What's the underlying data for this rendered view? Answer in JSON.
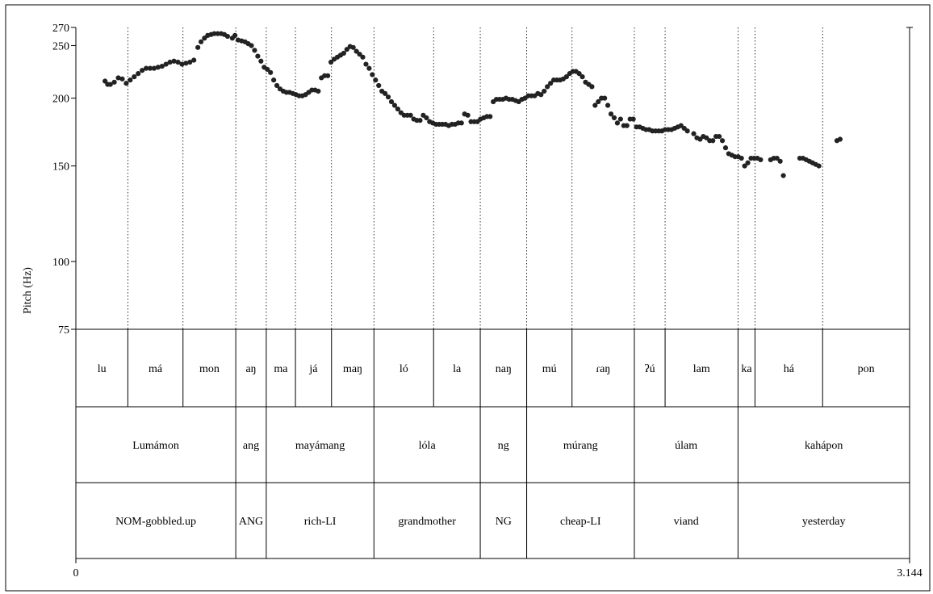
{
  "chart_data": {
    "type": "scatter",
    "title": "",
    "xlabel": "",
    "ylabel": "Pitch (Hz)",
    "xlim": [
      0,
      3.144
    ],
    "ylim": [
      75,
      270
    ],
    "y_ticks": [
      "270",
      "250",
      "200",
      "150",
      "100",
      "75"
    ],
    "x_tick_labels": [
      "0",
      "3.144"
    ],
    "grid": "dotted vertical lines at syllable boundaries",
    "boundaries": [
      0.196,
      0.404,
      0.603,
      0.718,
      0.828,
      0.964,
      1.124,
      1.349,
      1.525,
      1.7,
      1.871,
      2.106,
      2.222,
      2.497,
      2.561,
      2.816
    ],
    "tiers": [
      {
        "name": "syllables",
        "intervals": [
          {
            "label": "lu",
            "start": 0.0,
            "end": 0.196
          },
          {
            "label": "má",
            "start": 0.196,
            "end": 0.404
          },
          {
            "label": "mon",
            "start": 0.404,
            "end": 0.603
          },
          {
            "label": "aŋ",
            "start": 0.603,
            "end": 0.718
          },
          {
            "label": "ma",
            "start": 0.718,
            "end": 0.828
          },
          {
            "label": "já",
            "start": 0.828,
            "end": 0.964
          },
          {
            "label": "maŋ",
            "start": 0.964,
            "end": 1.124
          },
          {
            "label": "ló",
            "start": 1.124,
            "end": 1.349
          },
          {
            "label": "la",
            "start": 1.349,
            "end": 1.525
          },
          {
            "label": "naŋ",
            "start": 1.525,
            "end": 1.7
          },
          {
            "label": "mú",
            "start": 1.7,
            "end": 1.871
          },
          {
            "label": "ɾaŋ",
            "start": 1.871,
            "end": 2.106
          },
          {
            "label": "ʔú",
            "start": 2.106,
            "end": 2.222
          },
          {
            "label": "lam",
            "start": 2.222,
            "end": 2.497
          },
          {
            "label": "ka",
            "start": 2.497,
            "end": 2.561
          },
          {
            "label": "há",
            "start": 2.561,
            "end": 2.816
          },
          {
            "label": "pon",
            "start": 2.816,
            "end": 3.144
          }
        ]
      },
      {
        "name": "words",
        "intervals": [
          {
            "label": "Lumámon",
            "start": 0.0,
            "end": 0.603
          },
          {
            "label": "ang",
            "start": 0.603,
            "end": 0.718
          },
          {
            "label": "mayámang",
            "start": 0.718,
            "end": 1.124
          },
          {
            "label": "lóla",
            "start": 1.124,
            "end": 1.525
          },
          {
            "label": "ng",
            "start": 1.525,
            "end": 1.7
          },
          {
            "label": "múrang",
            "start": 1.7,
            "end": 2.106
          },
          {
            "label": "úlam",
            "start": 2.106,
            "end": 2.497
          },
          {
            "label": "kahápon",
            "start": 2.497,
            "end": 3.144
          }
        ]
      },
      {
        "name": "gloss",
        "intervals": [
          {
            "label": "NOM-gobbled.up",
            "start": 0.0,
            "end": 0.603
          },
          {
            "label": "ANG",
            "start": 0.603,
            "end": 0.718
          },
          {
            "label": "rich-LI",
            "start": 0.718,
            "end": 1.124
          },
          {
            "label": "grandmother",
            "start": 1.124,
            "end": 1.525
          },
          {
            "label": "NG",
            "start": 1.525,
            "end": 1.7
          },
          {
            "label": "cheap-LI",
            "start": 1.7,
            "end": 2.106
          },
          {
            "label": "viand",
            "start": 2.106,
            "end": 2.497
          },
          {
            "label": "yesterday",
            "start": 2.497,
            "end": 3.144
          }
        ]
      }
    ],
    "series": [
      {
        "points": [
          [
            0.11,
            215
          ],
          [
            0.12,
            212
          ],
          [
            0.13,
            212
          ],
          [
            0.145,
            214
          ],
          [
            0.16,
            218
          ],
          [
            0.175,
            217
          ],
          [
            0.19,
            213
          ],
          [
            0.205,
            216
          ],
          [
            0.22,
            219
          ],
          [
            0.235,
            222
          ],
          [
            0.25,
            225
          ],
          [
            0.265,
            227
          ],
          [
            0.28,
            227
          ],
          [
            0.295,
            227
          ],
          [
            0.31,
            228
          ],
          [
            0.325,
            229
          ],
          [
            0.34,
            231
          ],
          [
            0.355,
            233
          ],
          [
            0.37,
            234
          ],
          [
            0.385,
            233
          ],
          [
            0.4,
            231
          ],
          [
            0.415,
            232
          ],
          [
            0.43,
            233
          ],
          [
            0.445,
            235
          ],
          [
            0.46,
            248
          ],
          [
            0.472,
            254
          ],
          [
            0.485,
            258
          ],
          [
            0.497,
            261
          ],
          [
            0.51,
            262
          ],
          [
            0.522,
            263
          ],
          [
            0.535,
            263
          ],
          [
            0.548,
            263
          ],
          [
            0.56,
            262
          ],
          [
            0.572,
            260
          ],
          [
            0.59,
            258
          ],
          [
            0.6,
            261
          ],
          [
            0.612,
            256
          ],
          [
            0.625,
            255
          ],
          [
            0.638,
            254
          ],
          [
            0.65,
            252
          ],
          [
            0.662,
            250
          ],
          [
            0.674,
            245
          ],
          [
            0.686,
            239
          ],
          [
            0.698,
            234
          ],
          [
            0.71,
            228
          ],
          [
            0.722,
            226
          ],
          [
            0.734,
            223
          ],
          [
            0.746,
            216
          ],
          [
            0.758,
            211
          ],
          [
            0.77,
            208
          ],
          [
            0.782,
            206
          ],
          [
            0.794,
            205
          ],
          [
            0.806,
            205
          ],
          [
            0.818,
            204
          ],
          [
            0.83,
            203
          ],
          [
            0.842,
            202
          ],
          [
            0.854,
            202
          ],
          [
            0.866,
            203
          ],
          [
            0.878,
            205
          ],
          [
            0.89,
            207
          ],
          [
            0.902,
            207
          ],
          [
            0.914,
            206
          ],
          [
            0.926,
            218
          ],
          [
            0.938,
            220
          ],
          [
            0.95,
            220
          ],
          [
            0.962,
            233
          ],
          [
            0.974,
            236
          ],
          [
            0.986,
            238
          ],
          [
            0.998,
            240
          ],
          [
            1.01,
            242
          ],
          [
            1.022,
            246
          ],
          [
            1.034,
            249
          ],
          [
            1.046,
            248
          ],
          [
            1.058,
            244
          ],
          [
            1.07,
            241
          ],
          [
            1.082,
            238
          ],
          [
            1.094,
            231
          ],
          [
            1.106,
            227
          ],
          [
            1.118,
            221
          ],
          [
            1.13,
            216
          ],
          [
            1.142,
            211
          ],
          [
            1.154,
            206
          ],
          [
            1.166,
            204
          ],
          [
            1.178,
            201
          ],
          [
            1.19,
            197
          ],
          [
            1.202,
            194
          ],
          [
            1.214,
            191
          ],
          [
            1.226,
            188
          ],
          [
            1.238,
            186
          ],
          [
            1.25,
            186
          ],
          [
            1.262,
            186
          ],
          [
            1.274,
            183
          ],
          [
            1.286,
            182
          ],
          [
            1.298,
            182
          ],
          [
            1.31,
            186
          ],
          [
            1.322,
            184
          ],
          [
            1.334,
            181
          ],
          [
            1.346,
            180
          ],
          [
            1.358,
            179
          ],
          [
            1.37,
            179
          ],
          [
            1.382,
            179
          ],
          [
            1.394,
            179
          ],
          [
            1.406,
            178
          ],
          [
            1.418,
            179
          ],
          [
            1.43,
            179
          ],
          [
            1.442,
            180
          ],
          [
            1.454,
            180
          ],
          [
            1.466,
            187
          ],
          [
            1.478,
            186
          ],
          [
            1.49,
            181
          ],
          [
            1.502,
            181
          ],
          [
            1.514,
            181
          ],
          [
            1.526,
            183
          ],
          [
            1.538,
            184
          ],
          [
            1.55,
            185
          ],
          [
            1.562,
            185
          ],
          [
            1.574,
            197
          ],
          [
            1.586,
            199
          ],
          [
            1.598,
            199
          ],
          [
            1.61,
            199
          ],
          [
            1.622,
            200
          ],
          [
            1.634,
            199
          ],
          [
            1.646,
            199
          ],
          [
            1.658,
            198
          ],
          [
            1.67,
            197
          ],
          [
            1.682,
            199
          ],
          [
            1.694,
            200
          ],
          [
            1.706,
            202
          ],
          [
            1.718,
            202
          ],
          [
            1.73,
            202
          ],
          [
            1.742,
            204
          ],
          [
            1.754,
            203
          ],
          [
            1.766,
            206
          ],
          [
            1.778,
            210
          ],
          [
            1.79,
            213
          ],
          [
            1.802,
            216
          ],
          [
            1.814,
            216
          ],
          [
            1.826,
            216
          ],
          [
            1.838,
            217
          ],
          [
            1.85,
            219
          ],
          [
            1.862,
            222
          ],
          [
            1.874,
            224
          ],
          [
            1.886,
            224
          ],
          [
            1.898,
            222
          ],
          [
            1.91,
            219
          ],
          [
            1.922,
            214
          ],
          [
            1.934,
            212
          ],
          [
            1.946,
            210
          ],
          [
            1.958,
            194
          ],
          [
            1.97,
            197
          ],
          [
            1.982,
            200
          ],
          [
            1.994,
            200
          ],
          [
            2.006,
            194
          ],
          [
            2.018,
            187
          ],
          [
            2.03,
            184
          ],
          [
            2.042,
            180
          ],
          [
            2.054,
            183
          ],
          [
            2.066,
            178
          ],
          [
            2.078,
            178
          ],
          [
            2.09,
            183
          ],
          [
            2.102,
            183
          ],
          [
            2.114,
            177
          ],
          [
            2.126,
            177
          ],
          [
            2.138,
            176
          ],
          [
            2.15,
            175
          ],
          [
            2.162,
            175
          ],
          [
            2.174,
            174
          ],
          [
            2.186,
            174
          ],
          [
            2.198,
            174
          ],
          [
            2.21,
            174
          ],
          [
            2.222,
            175
          ],
          [
            2.234,
            175
          ],
          [
            2.246,
            175
          ],
          [
            2.258,
            176
          ],
          [
            2.27,
            177
          ],
          [
            2.282,
            178
          ],
          [
            2.294,
            176
          ],
          [
            2.306,
            174
          ],
          [
            2.33,
            172
          ],
          [
            2.342,
            169
          ],
          [
            2.354,
            168
          ],
          [
            2.366,
            170
          ],
          [
            2.378,
            169
          ],
          [
            2.39,
            167
          ],
          [
            2.402,
            167
          ],
          [
            2.414,
            170
          ],
          [
            2.426,
            170
          ],
          [
            2.438,
            167
          ],
          [
            2.45,
            162
          ],
          [
            2.462,
            158
          ],
          [
            2.474,
            157
          ],
          [
            2.486,
            156
          ],
          [
            2.498,
            156
          ],
          [
            2.51,
            155
          ],
          [
            2.522,
            150
          ],
          [
            2.534,
            152
          ],
          [
            2.546,
            155
          ],
          [
            2.558,
            155
          ],
          [
            2.57,
            155
          ],
          [
            2.582,
            154
          ],
          [
            2.62,
            154
          ],
          [
            2.632,
            155
          ],
          [
            2.644,
            155
          ],
          [
            2.656,
            153
          ],
          [
            2.668,
            144
          ],
          [
            2.73,
            155
          ],
          [
            2.742,
            155
          ],
          [
            2.754,
            154
          ],
          [
            2.766,
            153
          ],
          [
            2.778,
            152
          ],
          [
            2.79,
            151
          ],
          [
            2.802,
            150
          ],
          [
            2.87,
            167
          ],
          [
            2.882,
            168
          ]
        ]
      }
    ]
  }
}
